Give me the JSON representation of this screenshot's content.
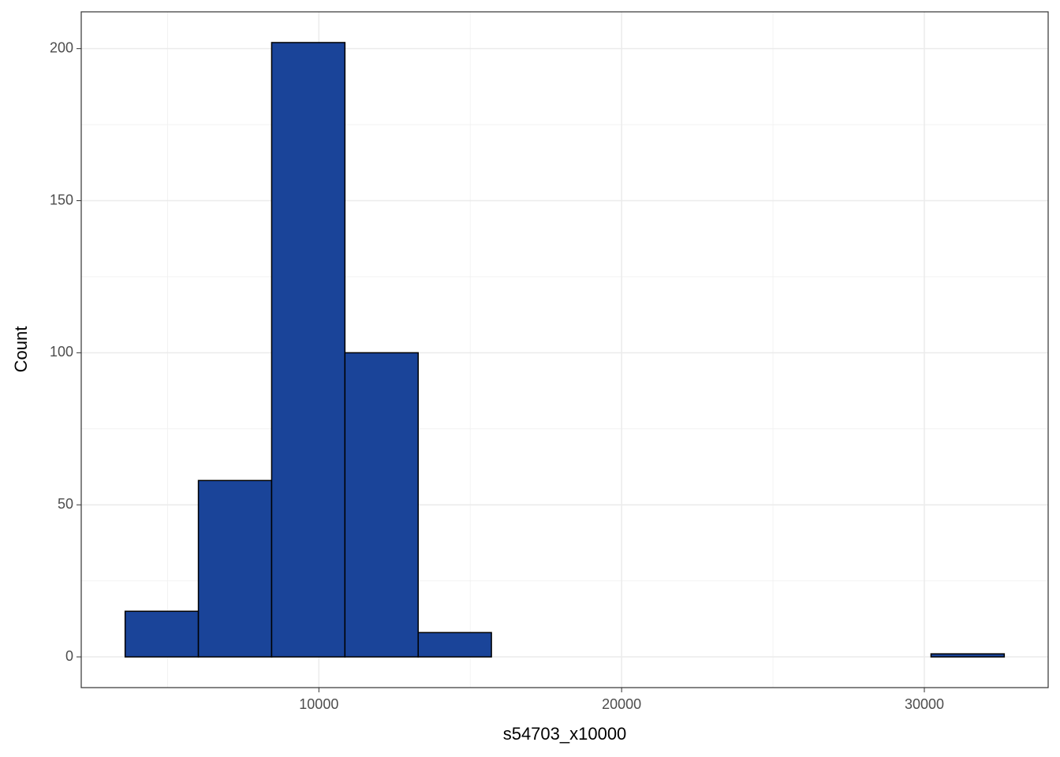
{
  "chart_data": {
    "type": "histogram",
    "x_label": "s54703_x10000",
    "y_label": "Count",
    "bins": [
      3600,
      6020,
      8440,
      10860,
      13280,
      15700,
      18120,
      20540,
      22960,
      25380,
      27800,
      30220,
      32640
    ],
    "counts": [
      15,
      58,
      202,
      100,
      8,
      0,
      0,
      0,
      0,
      0,
      0,
      1
    ],
    "color": "#1a4499",
    "edge_color": "#000000",
    "xlim": [
      2150,
      34090
    ],
    "ylim": [
      -10.1,
      212.1
    ],
    "xticks": [
      10000,
      20000,
      30000
    ],
    "yticks": [
      0,
      50,
      100,
      150,
      200
    ],
    "x_minor_ticks": [
      5000,
      15000,
      25000
    ],
    "y_minor_ticks": [
      25,
      75,
      125,
      175
    ],
    "grid": true
  }
}
